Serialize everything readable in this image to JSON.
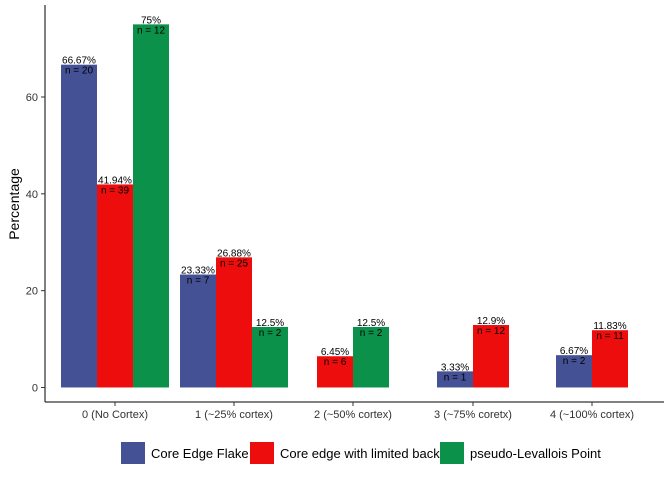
{
  "chart_data": {
    "type": "bar",
    "xlabel": "",
    "ylabel": "Percentage",
    "ylim": [
      -3,
      79
    ],
    "yticks": [
      0,
      20,
      40,
      60
    ],
    "grid": false,
    "legend_position": "bottom",
    "categories": [
      "0 (No Cortex)",
      "1 (~25% cortex)",
      "2 (~50% cortex)",
      "3 (~75% coretx)",
      "4 (~100% cortex)"
    ],
    "series": [
      {
        "name": "Core Edge Flake",
        "color": "#455195",
        "values": [
          66.67,
          23.33,
          null,
          3.33,
          6.67
        ],
        "pct_labels": [
          "66.67%",
          "23.33%",
          "",
          "3.33%",
          "6.67%"
        ],
        "n_labels": [
          "n = 20",
          "n = 7",
          "",
          "n = 1",
          "n = 2"
        ]
      },
      {
        "name": "Core edge with limited back",
        "color": "#EE0D0D",
        "values": [
          41.94,
          26.88,
          6.45,
          12.9,
          11.83
        ],
        "pct_labels": [
          "41.94%",
          "26.88%",
          "6.45%",
          "12.9%",
          "11.83%"
        ],
        "n_labels": [
          "n = 39",
          "n = 25",
          "n = 6",
          "n = 12",
          "n = 11"
        ]
      },
      {
        "name": "pseudo-Levallois Point",
        "color": "#0C914A",
        "values": [
          75,
          12.5,
          12.5,
          null,
          null
        ],
        "pct_labels": [
          "75%",
          "12.5%",
          "12.5%",
          "",
          ""
        ],
        "n_labels": [
          "n = 12",
          "n = 2",
          "n = 2",
          "",
          ""
        ]
      }
    ]
  }
}
